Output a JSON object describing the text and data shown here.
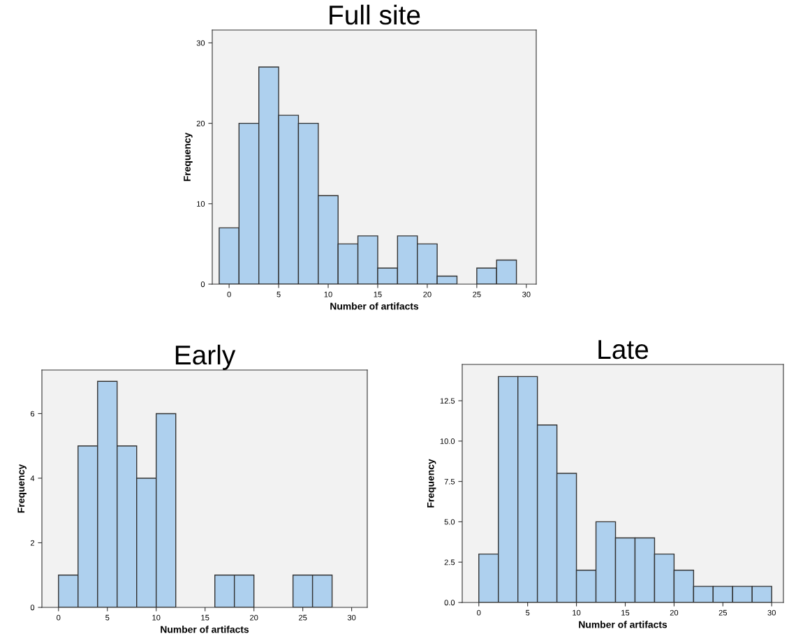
{
  "chart_data": [
    {
      "type": "histogram",
      "title": "Full site",
      "xlabel": "Number of artifacts",
      "ylabel": "Frequency",
      "color": "#aed0ee",
      "bins": [
        -1,
        1,
        3,
        5,
        7,
        9,
        11,
        13,
        15,
        17,
        19,
        21,
        23,
        25,
        27,
        29
      ],
      "values": [
        7,
        20,
        27,
        21,
        20,
        11,
        5,
        6,
        2,
        6,
        5,
        1,
        0,
        2,
        3
      ],
      "xlim": [
        -1.7,
        31.0
      ],
      "xticks": [
        0,
        5,
        10,
        15,
        20,
        25,
        30
      ],
      "ylim": [
        0,
        31.6
      ],
      "yticks": [
        0,
        10,
        20,
        30
      ],
      "grid": false
    },
    {
      "type": "histogram",
      "title": "Early",
      "xlabel": "Number of artifacts",
      "ylabel": "Frequency",
      "color": "#aed0ee",
      "bins": [
        0,
        2,
        4,
        6,
        8,
        10,
        12,
        14,
        16,
        18,
        20,
        22,
        24,
        26,
        28,
        30
      ],
      "values": [
        1,
        5,
        7,
        5,
        4,
        6,
        0,
        0,
        1,
        1,
        0,
        0,
        1,
        1,
        0
      ],
      "xlim": [
        -1.7,
        31.6
      ],
      "xticks": [
        0,
        5,
        10,
        15,
        20,
        25,
        30
      ],
      "ylim": [
        0,
        7.35
      ],
      "yticks": [
        0,
        2,
        4,
        6
      ],
      "grid": false
    },
    {
      "type": "histogram",
      "title": "Late",
      "xlabel": "Number of artifacts",
      "ylabel": "Frequency",
      "color": "#aed0ee",
      "bins": [
        0,
        2,
        4,
        6,
        8,
        10,
        12,
        14,
        16,
        18,
        20,
        22,
        24,
        26,
        28,
        30
      ],
      "values": [
        3,
        14,
        14,
        11,
        8,
        2,
        5,
        4,
        4,
        3,
        2,
        1,
        1,
        1,
        1
      ],
      "xlim": [
        -1.7,
        31.2
      ],
      "xticks": [
        0,
        5,
        10,
        15,
        20,
        25,
        30
      ],
      "ylim": [
        0,
        14.75
      ],
      "yticks": [
        {
          "value": 0,
          "label": "0.0"
        },
        {
          "value": 2.5,
          "label": "2.5"
        },
        {
          "value": 5,
          "label": "5.0"
        },
        {
          "value": 7.5,
          "label": "7.5"
        },
        {
          "value": 10,
          "label": "10.0"
        },
        {
          "value": 12.5,
          "label": "12.5"
        }
      ],
      "grid": false
    }
  ]
}
